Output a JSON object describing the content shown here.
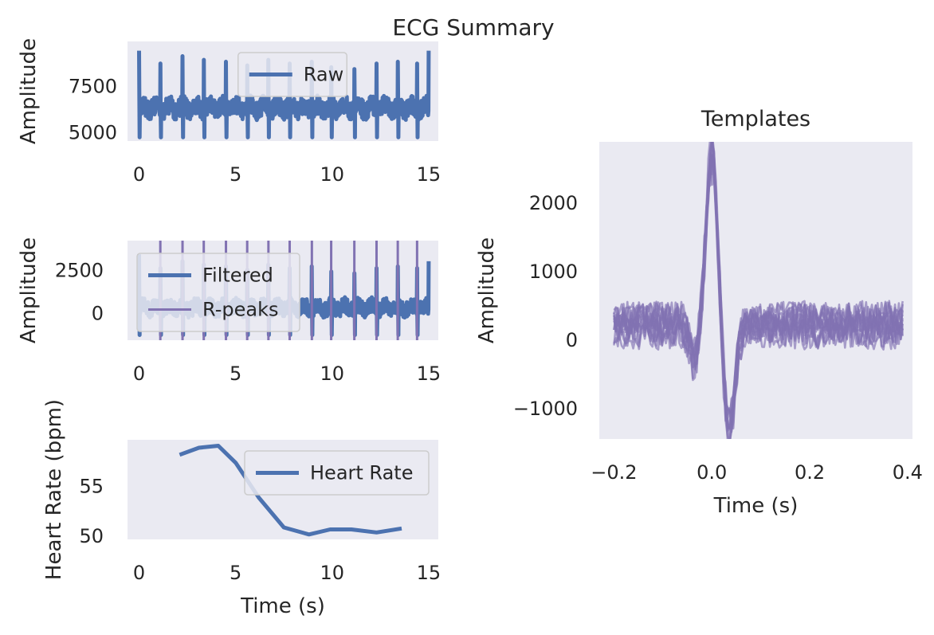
{
  "suptitle": "ECG Summary",
  "colors": {
    "panel_bg": "#eaeaf2",
    "raw": "#4c72b0",
    "filtered": "#4c72b0",
    "rpeaks": "#8172b2",
    "heart_rate": "#4c72b0",
    "templates": "#8172b2",
    "text": "#262626",
    "legend_border": "#cccccc"
  },
  "chart_data": [
    {
      "id": "raw",
      "type": "line",
      "title": "",
      "xlabel": "",
      "ylabel": "Amplitude",
      "xlim": [
        -0.6,
        15.5
      ],
      "ylim": [
        4500,
        9900
      ],
      "xticks": [
        "0",
        "5",
        "10",
        "15"
      ],
      "xtick_values": [
        0,
        5,
        10,
        15
      ],
      "yticks": [
        "5000",
        "7500"
      ],
      "ytick_values": [
        5000,
        7500
      ],
      "grid": false,
      "legend": {
        "entries": [
          "Raw"
        ],
        "placement": "upper center"
      },
      "series": [
        {
          "name": "Raw",
          "style": "signal",
          "duration": 15,
          "baseline": 6300,
          "noise": 500,
          "peak_times": [
            0.0,
            1.1,
            2.25,
            3.35,
            4.5,
            5.6,
            6.7,
            7.8,
            8.95,
            9.95,
            11.15,
            12.3,
            13.4,
            14.4,
            15.0
          ],
          "peak_heights": [
            9400,
            8700,
            9100,
            8900,
            8800,
            8600,
            8900,
            8700,
            8800,
            8500,
            8400,
            8700,
            8800,
            8700,
            9400
          ],
          "trough": 4700
        }
      ]
    },
    {
      "id": "filtered",
      "type": "line",
      "title": "",
      "xlabel": "",
      "ylabel": "Amplitude",
      "xlim": [
        -0.6,
        15.5
      ],
      "ylim": [
        -1600,
        4200
      ],
      "xticks": [
        "0",
        "5",
        "10",
        "15"
      ],
      "xtick_values": [
        0,
        5,
        10,
        15
      ],
      "yticks": [
        "0",
        "2500"
      ],
      "ytick_values": [
        0,
        2500
      ],
      "grid": false,
      "legend": {
        "entries": [
          "Filtered",
          "R-peaks"
        ],
        "placement": "upper left"
      },
      "series": [
        {
          "name": "Filtered",
          "style": "signal",
          "duration": 15,
          "baseline": 300,
          "noise": 450,
          "peak_times": [
            0.0,
            1.1,
            2.25,
            3.35,
            4.5,
            5.6,
            6.7,
            7.8,
            8.95,
            9.95,
            11.15,
            12.3,
            13.4,
            14.4,
            15.0
          ],
          "peak_heights": [
            3400,
            2600,
            3000,
            2800,
            2700,
            2500,
            2800,
            2600,
            2700,
            2400,
            2300,
            2600,
            2700,
            2600,
            3000
          ],
          "trough": -1300
        },
        {
          "name": "R-peaks",
          "style": "vlines",
          "x": [
            1.1,
            2.25,
            3.35,
            4.5,
            5.6,
            6.7,
            7.8,
            8.95,
            9.95,
            11.15,
            12.3,
            13.4,
            14.4
          ]
        }
      ]
    },
    {
      "id": "heart_rate",
      "type": "line",
      "title": "",
      "xlabel": "Time (s)",
      "ylabel": "Heart Rate (bpm)",
      "xlim": [
        -0.6,
        15.5
      ],
      "ylim": [
        49.6,
        59.6
      ],
      "xticks": [
        "0",
        "5",
        "10",
        "15"
      ],
      "xtick_values": [
        0,
        5,
        10,
        15
      ],
      "yticks": [
        "50",
        "55"
      ],
      "ytick_values": [
        50,
        55
      ],
      "grid": false,
      "legend": {
        "entries": [
          "Heart Rate"
        ],
        "placement": "upper right"
      },
      "series": [
        {
          "name": "Heart Rate",
          "style": "line",
          "x": [
            2.1,
            3.1,
            4.1,
            5.0,
            6.2,
            7.5,
            8.8,
            9.9,
            11.0,
            12.3,
            13.6
          ],
          "y": [
            58.1,
            58.8,
            59.0,
            57.3,
            53.8,
            50.8,
            50.1,
            50.6,
            50.6,
            50.3,
            50.7
          ]
        }
      ]
    },
    {
      "id": "templates",
      "type": "line",
      "title": "Templates",
      "xlabel": "Time (s)",
      "ylabel": "Amplitude",
      "xlim": [
        -0.23,
        0.41
      ],
      "ylim": [
        -1450,
        2880
      ],
      "xticks": [
        "−0.2",
        "0.0",
        "0.2",
        "0.4"
      ],
      "xtick_values": [
        -0.2,
        0.0,
        0.2,
        0.4
      ],
      "yticks": [
        "−1000",
        "0",
        "1000",
        "2000"
      ],
      "ytick_values": [
        -1000,
        0,
        1000,
        2000
      ],
      "grid": false,
      "legend": null,
      "series": [
        {
          "name": "",
          "style": "templates",
          "count": 13,
          "x_start": -0.2,
          "x_end": 0.39,
          "r_peak": [
            0.0,
            2600
          ],
          "s_trough": [
            0.035,
            -1100
          ],
          "q_dip": [
            -0.035,
            -500
          ],
          "band": [
            0,
            600
          ]
        }
      ]
    }
  ]
}
